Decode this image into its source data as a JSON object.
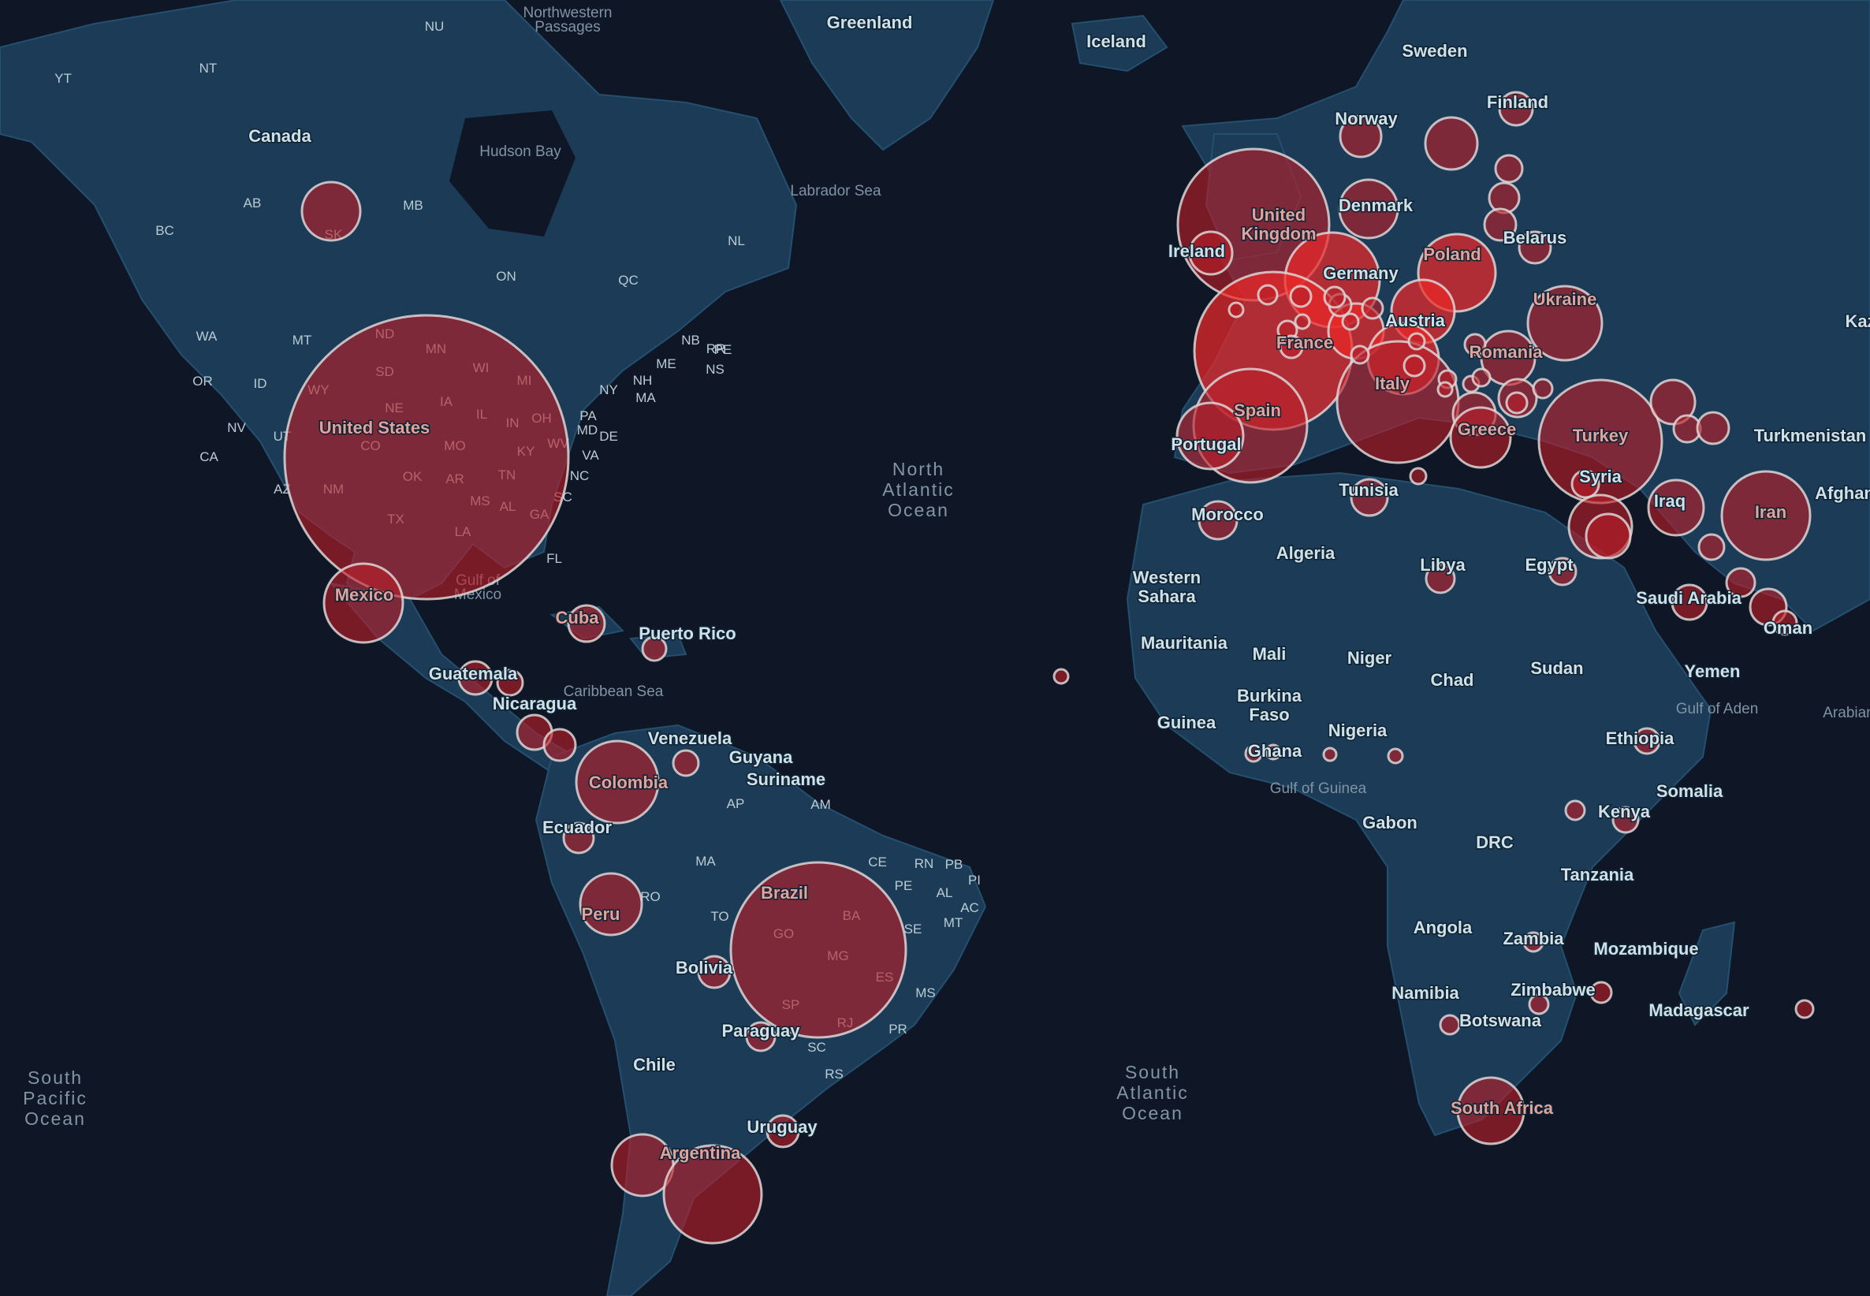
{
  "map": {
    "countries": [
      {
        "name": "Canada"
      },
      {
        "name": "United States"
      },
      {
        "name": "Mexico"
      },
      {
        "name": "Cuba"
      },
      {
        "name": "Puerto Rico"
      },
      {
        "name": "Guatemala"
      },
      {
        "name": "Nicaragua"
      },
      {
        "name": "Venezuela"
      },
      {
        "name": "Guyana"
      },
      {
        "name": "Suriname"
      },
      {
        "name": "Colombia"
      },
      {
        "name": "Ecuador"
      },
      {
        "name": "Peru"
      },
      {
        "name": "Brazil"
      },
      {
        "name": "Bolivia"
      },
      {
        "name": "Paraguay"
      },
      {
        "name": "Chile"
      },
      {
        "name": "Uruguay"
      },
      {
        "name": "Argentina"
      },
      {
        "name": "Greenland"
      },
      {
        "name": "Iceland"
      },
      {
        "name": "Sweden"
      },
      {
        "name": "Norway"
      },
      {
        "name": "Finland"
      },
      {
        "name": "Denmark"
      },
      {
        "name": "United Kingdom"
      },
      {
        "name": "Ireland"
      },
      {
        "name": "Belarus"
      },
      {
        "name": "Poland"
      },
      {
        "name": "Germany"
      },
      {
        "name": "Ukraine"
      },
      {
        "name": "France"
      },
      {
        "name": "Austria"
      },
      {
        "name": "Romania"
      },
      {
        "name": "Italy"
      },
      {
        "name": "Spain"
      },
      {
        "name": "Portugal"
      },
      {
        "name": "Greece"
      },
      {
        "name": "Turkey"
      },
      {
        "name": "Syria"
      },
      {
        "name": "Iraq"
      },
      {
        "name": "Iran"
      },
      {
        "name": "Turkmenistan"
      },
      {
        "name": "Afghan"
      },
      {
        "name": "Kaz"
      },
      {
        "name": "Tunisia"
      },
      {
        "name": "Morocco"
      },
      {
        "name": "Algeria"
      },
      {
        "name": "Libya"
      },
      {
        "name": "Egypt"
      },
      {
        "name": "Western Sahara"
      },
      {
        "name": "Mauritania"
      },
      {
        "name": "Mali"
      },
      {
        "name": "Niger"
      },
      {
        "name": "Chad"
      },
      {
        "name": "Sudan"
      },
      {
        "name": "Saudi Arabia"
      },
      {
        "name": "Yemen"
      },
      {
        "name": "Oman"
      },
      {
        "name": "Burkina Faso"
      },
      {
        "name": "Guinea"
      },
      {
        "name": "Ghana"
      },
      {
        "name": "Nigeria"
      },
      {
        "name": "Ethiopia"
      },
      {
        "name": "Somalia"
      },
      {
        "name": "Gabon"
      },
      {
        "name": "Kenya"
      },
      {
        "name": "DRC"
      },
      {
        "name": "Tanzania"
      },
      {
        "name": "Angola"
      },
      {
        "name": "Zambia"
      },
      {
        "name": "Mozambique"
      },
      {
        "name": "Zimbabwe"
      },
      {
        "name": "Namibia"
      },
      {
        "name": "Botswana"
      },
      {
        "name": "Madagascar"
      },
      {
        "name": "South Africa"
      }
    ],
    "regions": [
      "YT",
      "NT",
      "NU",
      "AB",
      "SK",
      "MB",
      "BC",
      "ON",
      "QC",
      "NL",
      "NB",
      "PE",
      "NS",
      "WA",
      "MT",
      "ND",
      "MN",
      "OR",
      "ID",
      "SD",
      "WI",
      "MI",
      "NE",
      "IA",
      "WY",
      "NV",
      "UT",
      "IL",
      "IN",
      "OH",
      "CA",
      "CO",
      "MO",
      "KY",
      "WV",
      "VA",
      "AZ",
      "NM",
      "OK",
      "AR",
      "TN",
      "NC",
      "TX",
      "MS",
      "AL",
      "GA",
      "SC",
      "LA",
      "FL",
      "NY",
      "PA",
      "MD",
      "DE",
      "NH",
      "MA",
      "ME",
      "RR",
      "AP",
      "AM",
      "MA",
      "CE",
      "RN",
      "PB",
      "PI",
      "PE",
      "AL",
      "AC",
      "RO",
      "TO",
      "BA",
      "SE",
      "MT",
      "GO",
      "MG",
      "ES",
      "MS",
      "SP",
      "RJ",
      "PR",
      "SC",
      "RS"
    ],
    "water": [
      {
        "name": "North Atlantic Ocean"
      },
      {
        "name": "South Atlantic Ocean"
      },
      {
        "name": "South Pacific Ocean"
      },
      {
        "name": "Hudson Bay"
      },
      {
        "name": "Labrador Sea"
      },
      {
        "name": "Northwestern Passages"
      },
      {
        "name": "Caribbean Sea"
      },
      {
        "name": "Gulf of Mexico"
      },
      {
        "name": "Gulf of Guinea"
      },
      {
        "name": "Gulf of Aden"
      },
      {
        "name": "Arabian"
      }
    ],
    "colors": {
      "ocean": "#0f1626",
      "land": "#1b3b57",
      "bubble": "#ba1e28",
      "bubble_stroke": "#dcd7d7"
    }
  }
}
